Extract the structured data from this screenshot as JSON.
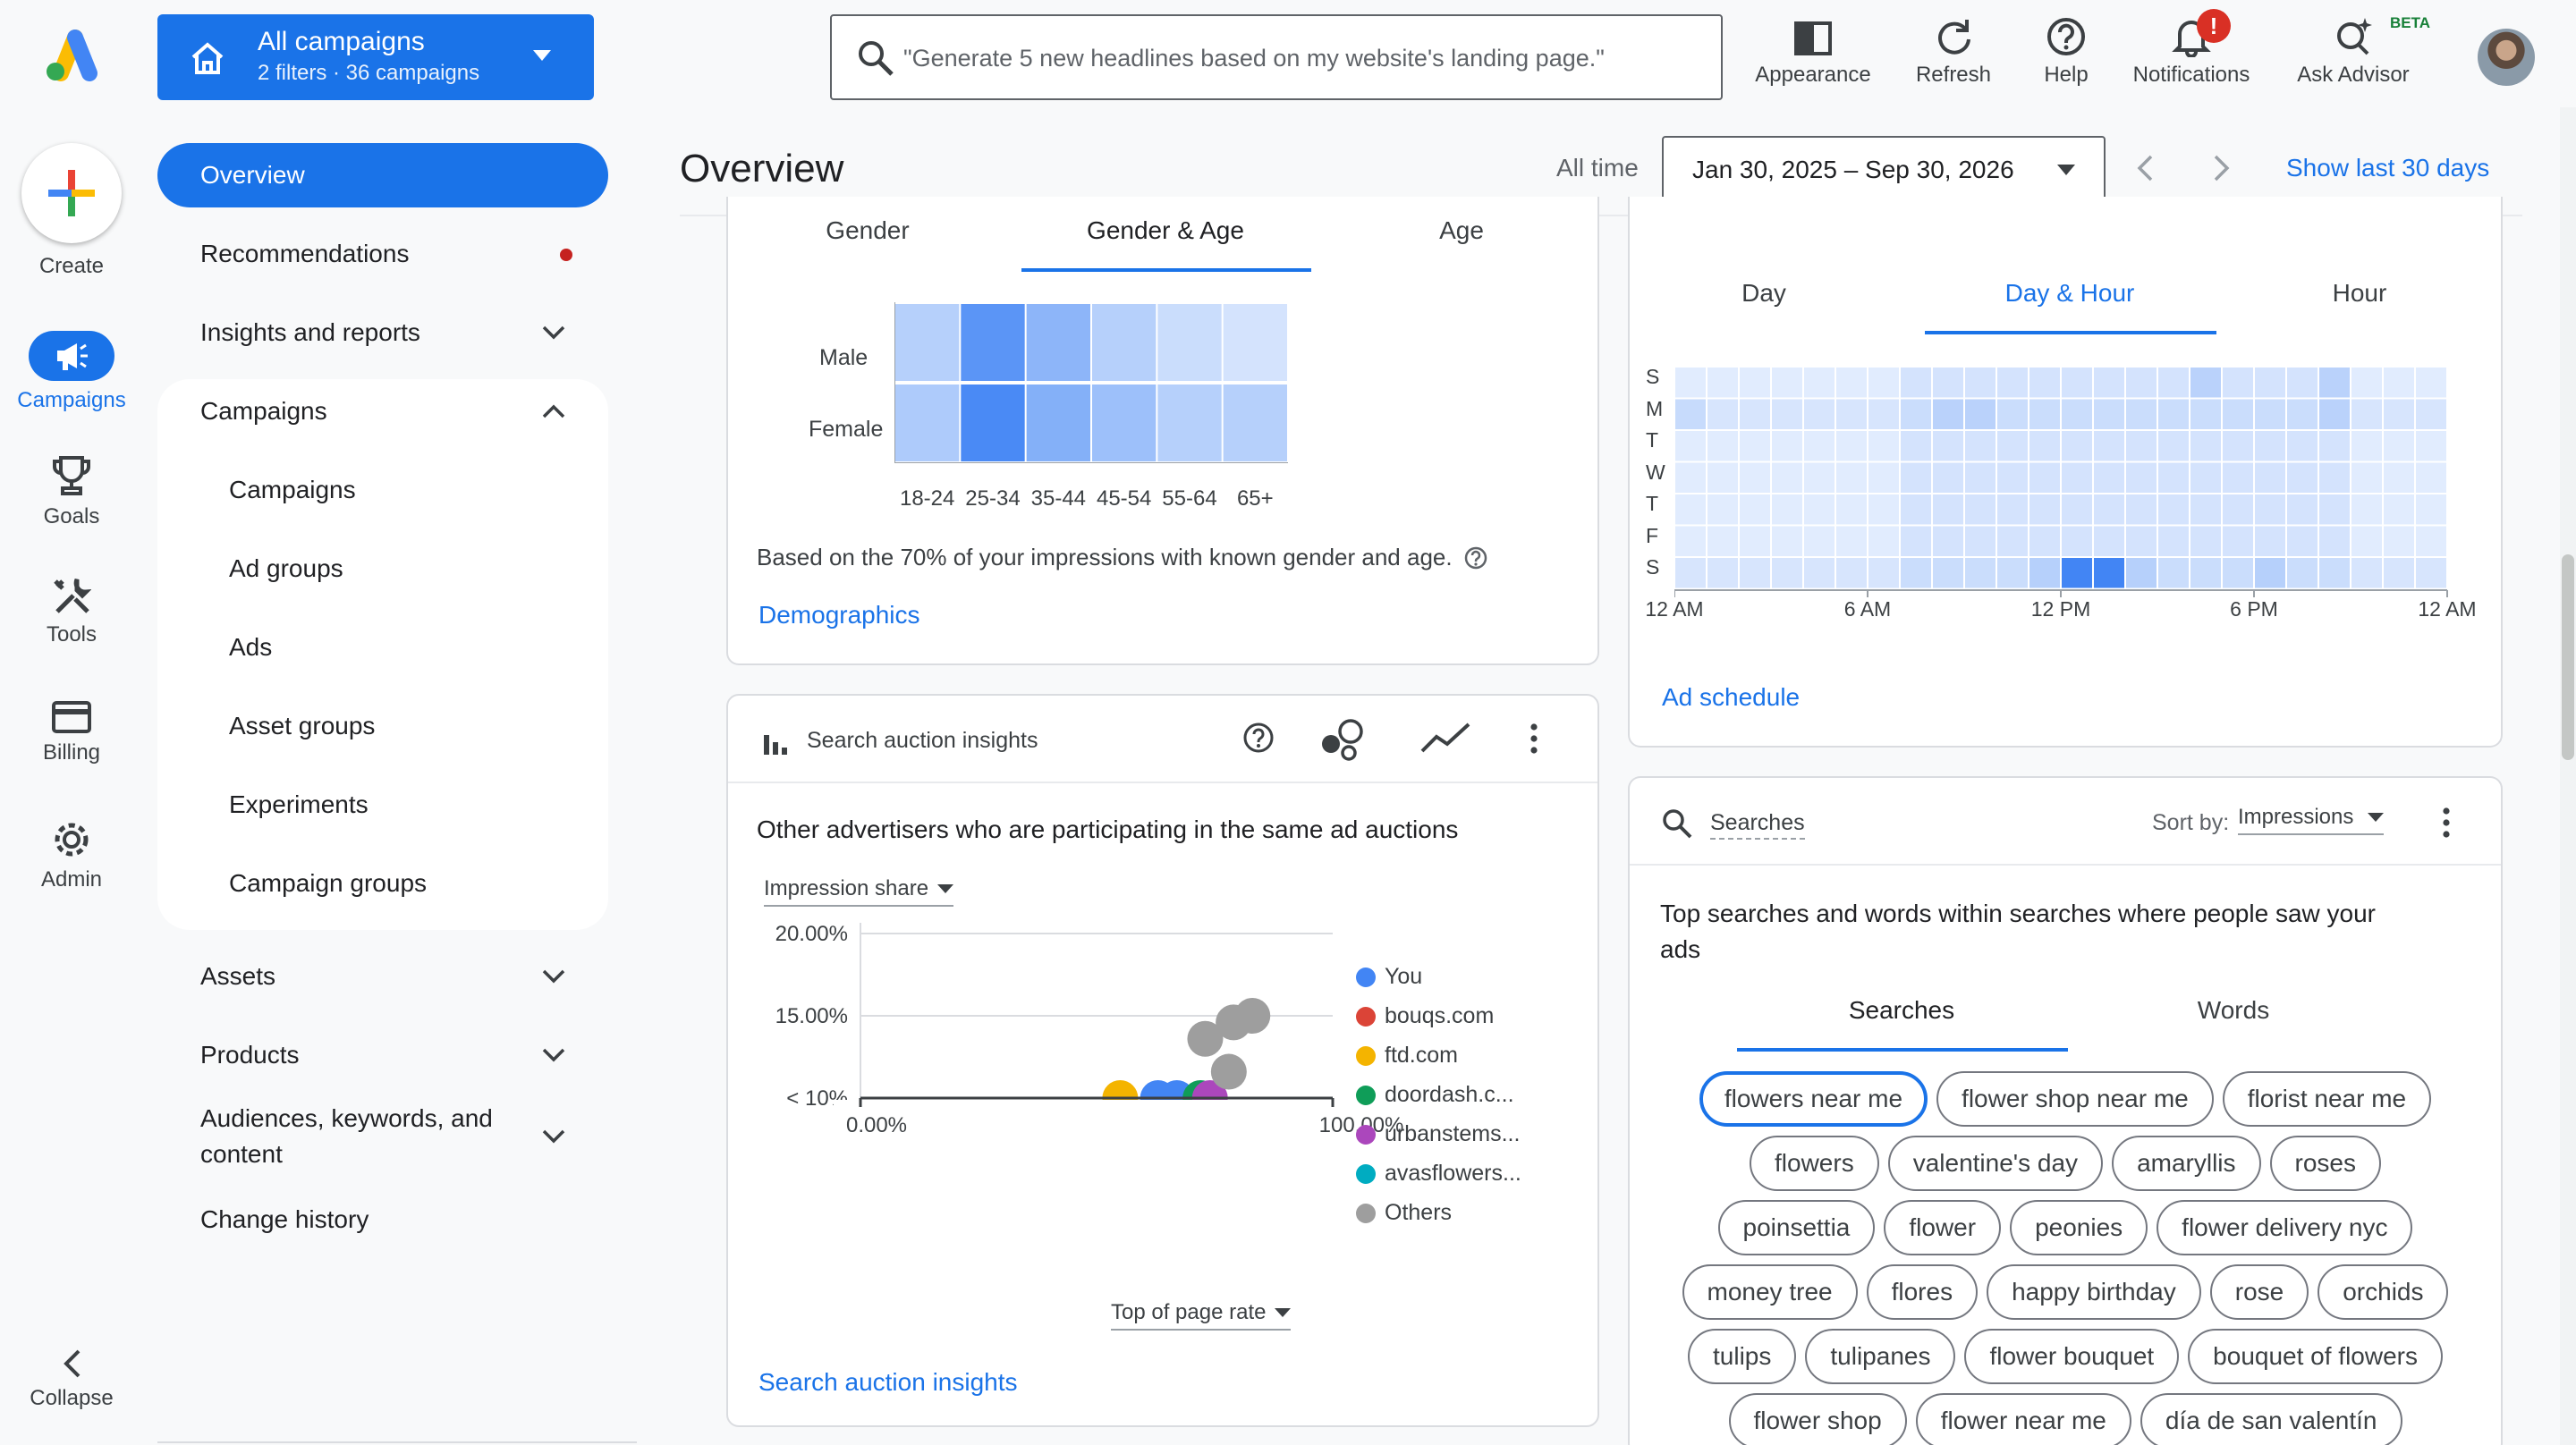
{
  "header": {
    "account_title": "All campaigns",
    "account_sub": "2 filters · 36 campaigns",
    "search_placeholder": "\"Generate 5 new headlines based on my website's landing page.\"",
    "buttons": {
      "appearance": "Appearance",
      "refresh": "Refresh",
      "help": "Help",
      "notifications": "Notifications",
      "advisor": "Ask Advisor",
      "advisor_badge": "BETA"
    }
  },
  "rail": {
    "create": "Create",
    "campaigns": "Campaigns",
    "goals": "Goals",
    "tools": "Tools",
    "billing": "Billing",
    "admin": "Admin",
    "collapse": "Collapse"
  },
  "nav": {
    "overview": "Overview",
    "recommendations": "Recommendations",
    "insights": "Insights and reports",
    "campaigns_group": "Campaigns",
    "campaigns": "Campaigns",
    "ad_groups": "Ad groups",
    "ads": "Ads",
    "asset_groups": "Asset groups",
    "experiments": "Experiments",
    "campaign_groups": "Campaign groups",
    "assets": "Assets",
    "products": "Products",
    "audiences_line1": "Audiences, keywords, and",
    "audiences_line2": "content",
    "change_history": "Change history"
  },
  "page": {
    "title": "Overview",
    "all_time": "All time",
    "date_range": "Jan 30, 2025 – Sep 30, 2026",
    "show_last": "Show last 30 days"
  },
  "demographics": {
    "tabs": [
      "Gender",
      "Gender & Age",
      "Age"
    ],
    "rows": [
      "Male",
      "Female"
    ],
    "cols": [
      "18-24",
      "25-34",
      "35-44",
      "45-54",
      "55-64",
      "65+"
    ],
    "values": [
      [
        0.3,
        0.85,
        0.55,
        0.3,
        0.18,
        0.12
      ],
      [
        0.35,
        0.95,
        0.6,
        0.45,
        0.3,
        0.3
      ]
    ],
    "note": "Based on the 70% of your impressions with known gender and age.",
    "link": "Demographics"
  },
  "schedule": {
    "tabs": [
      "Day",
      "Day & Hour",
      "Hour"
    ],
    "days": [
      "S",
      "M",
      "T",
      "W",
      "T",
      "F",
      "S"
    ],
    "hours": [
      "12 AM",
      "6 AM",
      "12 PM",
      "6 PM",
      "12 AM"
    ],
    "link": "Ad schedule"
  },
  "auction": {
    "card_title": "Search auction insights",
    "heading": "Other advertisers who are participating in the same ad auctions",
    "metric": "Impression share",
    "y_ticks": [
      "20.00%",
      "15.00%",
      "< 10%"
    ],
    "x_ticks": [
      "0.00%",
      "100.00%"
    ],
    "x_metric": "Top of page rate",
    "legend": [
      {
        "name": "You",
        "color": "#4285f4"
      },
      {
        "name": "bouqs.com",
        "color": "#db4437"
      },
      {
        "name": "ftd.com",
        "color": "#f4b400"
      },
      {
        "name": "doordash.c...",
        "color": "#0f9d58"
      },
      {
        "name": "urbanstems...",
        "color": "#ab47bc"
      },
      {
        "name": "avasflowers...",
        "color": "#00acc1"
      },
      {
        "name": "Others",
        "color": "#9e9e9e"
      }
    ],
    "link": "Search auction insights"
  },
  "searches": {
    "card_title": "Searches",
    "sort_label": "Sort by:",
    "sort_value": "Impressions",
    "heading_line1": "Top searches and words within searches where people saw your",
    "heading_line2": "ads",
    "tabs": [
      "Searches",
      "Words"
    ],
    "chip_rows": [
      [
        "flowers near me",
        "flower shop near me",
        "florist near me"
      ],
      [
        "flowers",
        "valentine's day",
        "amaryllis",
        "roses"
      ],
      [
        "poinsettia",
        "flower",
        "peonies",
        "flower delivery nyc"
      ],
      [
        "money tree",
        "flores",
        "happy birthday",
        "rose",
        "orchids"
      ],
      [
        "tulips",
        "tulipanes",
        "flower bouquet",
        "bouquet of flowers"
      ],
      [
        "flower shop",
        "flower near me",
        "día de san valentín"
      ]
    ]
  },
  "chart_data": [
    {
      "type": "heatmap",
      "title": "",
      "rows": [
        "Male",
        "Female"
      ],
      "columns": [
        "18-24",
        "25-34",
        "35-44",
        "45-54",
        "55-64",
        "65+"
      ],
      "values": [
        [
          0.3,
          0.85,
          0.55,
          0.3,
          0.18,
          0.12
        ],
        [
          0.35,
          0.95,
          0.6,
          0.45,
          0.3,
          0.3
        ]
      ]
    },
    {
      "type": "heatmap",
      "title": "",
      "rows": [
        "S",
        "M",
        "T",
        "W",
        "T",
        "F",
        "S"
      ],
      "x_tick_labels": [
        "12 AM",
        "6 AM",
        "12 PM",
        "6 PM",
        "12 AM"
      ]
    },
    {
      "type": "scatter",
      "title": "",
      "ylabel": "Impression share",
      "xlabel": "Top of page rate",
      "y_tick_labels": [
        "20.00%",
        "15.00%",
        "< 10%"
      ],
      "x_tick_labels": [
        "0.00%",
        "100.00%"
      ],
      "series": [
        {
          "name": "You",
          "color": "#4285f4",
          "points": [
            [
              63,
              10
            ],
            [
              67,
              10
            ]
          ]
        },
        {
          "name": "ftd.com",
          "color": "#f4b400",
          "points": [
            [
              55,
              10
            ]
          ]
        },
        {
          "name": "doordash.c...",
          "color": "#0f9d58",
          "points": [
            [
              72,
              10
            ]
          ]
        },
        {
          "name": "urbanstems...",
          "color": "#ab47bc",
          "points": [
            [
              74,
              10
            ]
          ]
        },
        {
          "name": "Others",
          "color": "#9e9e9e",
          "points": [
            [
              83,
              15
            ],
            [
              79,
              14.6
            ],
            [
              73,
              13.6
            ],
            [
              78,
              11.6
            ]
          ]
        }
      ]
    }
  ]
}
